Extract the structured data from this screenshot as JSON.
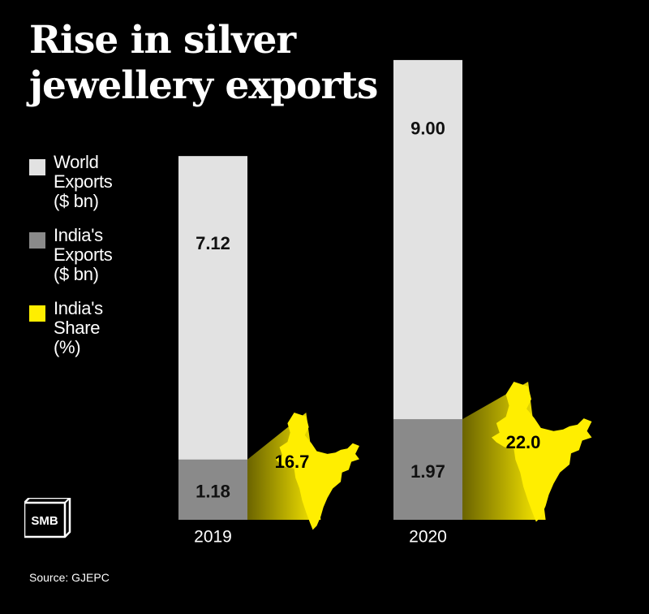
{
  "title_lines": [
    "Rise in silver",
    "jewellery exports"
  ],
  "legend": [
    {
      "lines": [
        "World",
        "Exports",
        "($ bn)"
      ],
      "color": "#e2e2e2"
    },
    {
      "lines": [
        "India's",
        "Exports",
        "($ bn)"
      ],
      "color": "#8a8a8a"
    },
    {
      "lines": [
        "India's",
        "Share",
        "(%)"
      ],
      "color": "#ffee00"
    }
  ],
  "source": "Source: GJEPC",
  "logo_text": "SMB",
  "colors": {
    "background": "#000000",
    "world": "#e2e2e2",
    "india": "#8a8a8a",
    "share": "#ffee00"
  },
  "chart_data": {
    "type": "bar",
    "categories": [
      "2019",
      "2020"
    ],
    "series": [
      {
        "name": "World Exports ($ bn)",
        "values": [
          7.12,
          9.0
        ],
        "labels": [
          "7.12",
          "9.00"
        ]
      },
      {
        "name": "India's Exports ($ bn)",
        "values": [
          1.18,
          1.97
        ],
        "labels": [
          "1.18",
          "1.97"
        ]
      },
      {
        "name": "India's Share (%)",
        "values": [
          16.7,
          22.0
        ],
        "labels": [
          "16.7",
          "22.0"
        ]
      }
    ],
    "stacking": "world total contains India's portion at base",
    "grid": false,
    "legend_position": "left"
  }
}
